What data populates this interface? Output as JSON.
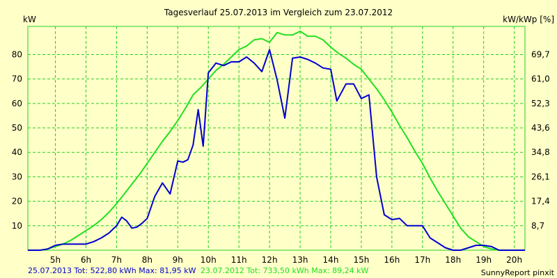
{
  "chart_data": {
    "type": "line",
    "title": "Tagesverlauf 25.07.2013 im Vergleich zum 23.07.2012",
    "ylabel_left": "kW",
    "ylabel_right": "kW/kWp [%]",
    "x_tick_labels": [
      "5h",
      "6h",
      "7h",
      "8h",
      "9h",
      "10h",
      "11h",
      "12h",
      "13h",
      "14h",
      "15h",
      "16h",
      "17h",
      "18h",
      "19h",
      "20h"
    ],
    "x_ticks": [
      5,
      6,
      7,
      8,
      9,
      10,
      11,
      12,
      13,
      14,
      15,
      16,
      17,
      18,
      19,
      20
    ],
    "xlim": [
      4.1,
      20.35
    ],
    "ylim": [
      0,
      91.5
    ],
    "y_ticks_left": [
      10,
      20,
      30,
      40,
      50,
      60,
      70,
      80
    ],
    "y_tick_labels_left": [
      "10",
      "20",
      "30",
      "40",
      "50",
      "60",
      "70",
      "80"
    ],
    "y_tick_labels_right": [
      "8,7",
      "17,4",
      "26,1",
      "34,8",
      "43,6",
      "52,3",
      "61,0",
      "69,7"
    ],
    "grid": true,
    "colors": {
      "line_2013": "#0000d0",
      "line_2012": "#20e020",
      "grid": "#20d020",
      "background": "#ffffc8"
    },
    "series": [
      {
        "name": "25.07.2013",
        "color": "#0000d0",
        "x": [
          4.1,
          4.5,
          4.75,
          5.0,
          5.25,
          5.5,
          5.75,
          6.0,
          6.25,
          6.5,
          6.75,
          7.0,
          7.17,
          7.33,
          7.5,
          7.67,
          7.83,
          8.0,
          8.25,
          8.5,
          8.75,
          9.0,
          9.17,
          9.33,
          9.5,
          9.67,
          9.83,
          10.0,
          10.25,
          10.5,
          10.75,
          11.0,
          11.25,
          11.5,
          11.75,
          12.0,
          12.25,
          12.5,
          12.75,
          13.0,
          13.25,
          13.5,
          13.75,
          14.0,
          14.2,
          14.5,
          14.75,
          15.0,
          15.25,
          15.5,
          15.75,
          16.0,
          16.25,
          16.5,
          16.75,
          17.0,
          17.25,
          17.5,
          17.75,
          18.0,
          18.25,
          18.5,
          18.75,
          19.0,
          19.25,
          19.5,
          19.75,
          20.0,
          20.35
        ],
        "values": [
          0,
          0,
          0.5,
          2,
          2.5,
          2.5,
          2.5,
          2.5,
          3.5,
          5,
          7,
          10,
          13.5,
          12,
          9,
          9.5,
          11,
          13,
          22,
          27.5,
          23,
          36.5,
          36,
          37,
          43,
          57.5,
          42.5,
          72.5,
          76.5,
          75.5,
          77,
          77,
          79,
          76.5,
          73,
          82,
          69.5,
          54,
          78.5,
          79,
          78,
          76.5,
          74.5,
          74,
          61,
          68,
          68,
          62,
          63.5,
          30,
          14.5,
          12.5,
          13,
          10,
          10,
          10,
          5,
          3,
          1,
          0,
          0,
          1,
          2,
          2,
          1.5,
          0,
          0,
          0,
          0
        ]
      },
      {
        "name": "23.07.2012",
        "color": "#20e020",
        "x": [
          4.1,
          4.5,
          4.75,
          5.0,
          5.25,
          5.5,
          5.75,
          6.0,
          6.25,
          6.5,
          6.75,
          7.0,
          7.25,
          7.5,
          7.75,
          8.0,
          8.25,
          8.5,
          8.75,
          9.0,
          9.25,
          9.5,
          9.75,
          10.0,
          10.25,
          10.5,
          10.75,
          11.0,
          11.25,
          11.5,
          11.75,
          12.0,
          12.25,
          12.5,
          12.75,
          13.0,
          13.25,
          13.5,
          13.75,
          14.0,
          14.25,
          14.5,
          14.75,
          15.0,
          15.25,
          15.5,
          15.75,
          16.0,
          16.25,
          16.5,
          16.75,
          17.0,
          17.25,
          17.5,
          17.75,
          18.0,
          18.25,
          18.5,
          18.75,
          19.0,
          19.25,
          19.5,
          19.75,
          20.0,
          20.35
        ],
        "values": [
          0,
          0,
          0.5,
          1.5,
          2.5,
          4,
          6,
          8,
          10,
          12.5,
          15.5,
          19,
          23,
          27,
          31,
          35.5,
          40,
          44.5,
          48.5,
          53,
          58,
          63.5,
          66.5,
          70,
          73.5,
          76,
          79,
          82,
          83.5,
          86,
          86.5,
          85,
          89,
          88,
          88,
          89.5,
          87.5,
          87.5,
          86,
          83,
          80.5,
          78.5,
          76,
          74,
          70,
          66,
          61.5,
          56.5,
          51,
          46,
          40.5,
          35.5,
          29.5,
          24,
          19,
          14,
          9,
          5.5,
          3.5,
          1.5,
          0.5,
          0,
          0,
          0,
          0
        ]
      }
    ]
  },
  "footer": {
    "summary_2013": "25.07.2013 Tot: 522,80 kWh Max: 81,95 kW",
    "summary_2012": "23.07.2012 Tot: 733,50 kWh Max: 89,24 kW",
    "credit": "SunnyReport pinxit"
  }
}
